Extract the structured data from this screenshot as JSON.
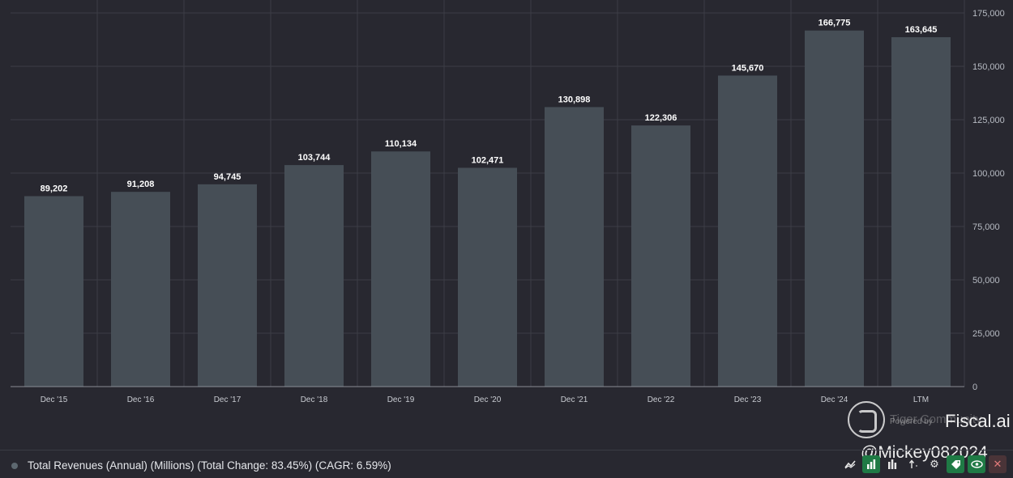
{
  "chart_data": {
    "type": "bar",
    "categories": [
      "Dec '15",
      "Dec '16",
      "Dec '17",
      "Dec '18",
      "Dec '19",
      "Dec '20",
      "Dec '21",
      "Dec '22",
      "Dec '23",
      "Dec '24",
      "LTM"
    ],
    "values": [
      89202,
      91208,
      94745,
      103744,
      110134,
      102471,
      130898,
      122306,
      145670,
      166775,
      163645
    ],
    "value_labels": [
      "89,202",
      "91,208",
      "94,745",
      "103,744",
      "110,134",
      "102,471",
      "130,898",
      "122,306",
      "145,670",
      "166,775",
      "163,645"
    ],
    "ylim": [
      0,
      175000
    ],
    "y_ticks": [
      0,
      25000,
      50000,
      75000,
      100000,
      125000,
      150000,
      175000
    ],
    "y_tick_labels": [
      "0",
      "25,000",
      "50,000",
      "75,000",
      "100,000",
      "125,000",
      "150,000",
      "175,000"
    ],
    "y_axis_side": "right",
    "grid": true,
    "bar_color": "#464e56",
    "background_color": "#282830",
    "grid_color": "#3c3d46"
  },
  "legend": {
    "series_label": "Total Revenues (Annual) (Millions) (Total Change: 83.45%) (CAGR: 6.59%)",
    "dot_color": "#5d6870"
  },
  "toolbar": {
    "icons": [
      "line-chart-icon",
      "bar-chart-icon",
      "column-chart-icon",
      "sort-icon",
      "gear-icon",
      "tag-icon",
      "eye-icon",
      "close-icon"
    ]
  },
  "branding": {
    "faint_text": "Tiger Community",
    "powered_by": "Powered by",
    "name": "Fiscal.ai",
    "watermark": "@Mickey082024"
  }
}
